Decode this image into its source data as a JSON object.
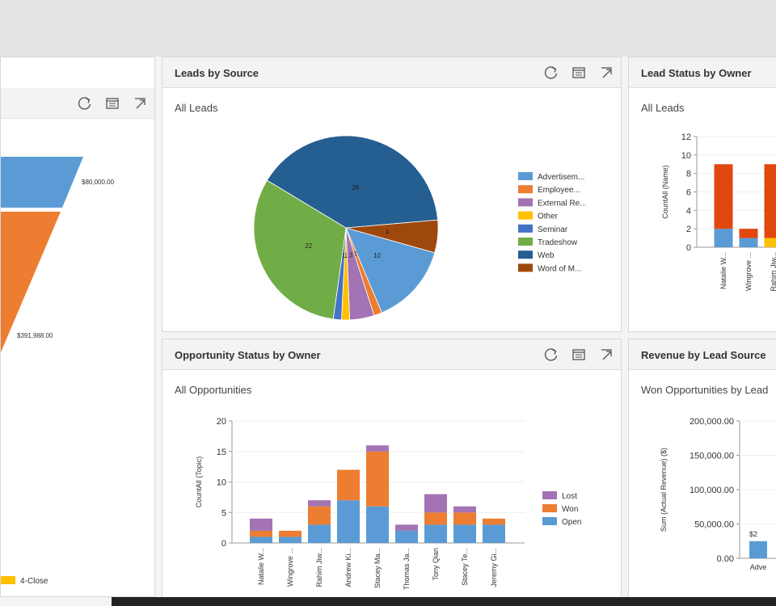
{
  "panels": {
    "funnel": {
      "labels": [
        "$80,000.00",
        "$391,988.00"
      ],
      "legend_last": "4-Close",
      "colors": [
        "#5b9bd5",
        "#ed7d31",
        "#ffc000"
      ]
    },
    "leads_by_source": {
      "title": "Leads by Source",
      "subtitle": "All Leads"
    },
    "lead_status": {
      "title": "Lead Status by Owner",
      "subtitle": "All Leads"
    },
    "opp_status": {
      "title": "Opportunity Status by Owner",
      "subtitle": "All Opportunities"
    },
    "revenue": {
      "title": "Revenue by Lead Source",
      "subtitle": "Won Opportunities by Lead"
    }
  },
  "icons": [
    "refresh-icon",
    "view-records-icon",
    "expand-icon"
  ],
  "chart_data": [
    {
      "id": "leads-by-source",
      "type": "pie",
      "categories": [
        "Advertisem...",
        "Employee...",
        "External Re...",
        "Other",
        "Seminar",
        "Tradeshow",
        "Web",
        "Word of M..."
      ],
      "values": [
        10,
        1,
        3,
        1,
        1,
        22,
        28,
        4
      ],
      "colors": [
        "#5b9bd5",
        "#ed7d31",
        "#a373b3",
        "#ffc000",
        "#4472c4",
        "#70ad47",
        "#255e91",
        "#9e480e"
      ],
      "data_labels": [
        "10",
        "1",
        "3",
        "1",
        "1",
        "22",
        "28",
        "4"
      ]
    },
    {
      "id": "lead-status-by-owner",
      "type": "bar",
      "ylabel": "CountAll (Name)",
      "ylim": [
        0,
        12
      ],
      "yticks": [
        "0",
        "2",
        "4",
        "6",
        "8",
        "10",
        "12"
      ],
      "categories": [
        "Natalie W...",
        "Wingrove ...",
        "Rahim Jiw..."
      ],
      "series": [
        {
          "values": [
            2,
            1,
            0
          ],
          "color": "#5b9bd5"
        },
        {
          "values": [
            0,
            0,
            1
          ],
          "color": "#ffc000"
        },
        {
          "values": [
            7,
            1,
            8
          ],
          "color": "#e0480e"
        }
      ]
    },
    {
      "id": "opportunity-status-by-owner",
      "type": "bar",
      "ylabel": "CountAll (Topic)",
      "ylim": [
        0,
        20
      ],
      "yticks": [
        "0",
        "5",
        "10",
        "15",
        "20"
      ],
      "categories": [
        "Natalie W...",
        "Wingrove ...",
        "Rahim Jiw...",
        "Andrew Ki...",
        "Stacey Ma...",
        "Thomas Ja...",
        "Tony Qian",
        "Stacey Te...",
        "Jeremy Gi..."
      ],
      "series": [
        {
          "name": "Open",
          "values": [
            1,
            1,
            3,
            7,
            6,
            2,
            3,
            3,
            3
          ],
          "color": "#5b9bd5"
        },
        {
          "name": "Won",
          "values": [
            1,
            1,
            3,
            5,
            9,
            0,
            2,
            2,
            1
          ],
          "color": "#ed7d31"
        },
        {
          "name": "Lost",
          "values": [
            2,
            0,
            1,
            0,
            1,
            1,
            3,
            1,
            0
          ],
          "color": "#a373b3"
        }
      ]
    },
    {
      "id": "revenue-by-lead-source",
      "type": "bar",
      "ylabel": "Sum (Actual Revenue) ($)",
      "ylim": [
        0,
        200000
      ],
      "yticks": [
        "0.00",
        "50,000.00",
        "100,000.00",
        "150,000.00",
        "200,000.00"
      ],
      "categories": [
        "Adve"
      ],
      "values": [
        25000
      ],
      "data_labels": [
        "$2"
      ],
      "colors": [
        "#5b9bd5"
      ]
    }
  ]
}
